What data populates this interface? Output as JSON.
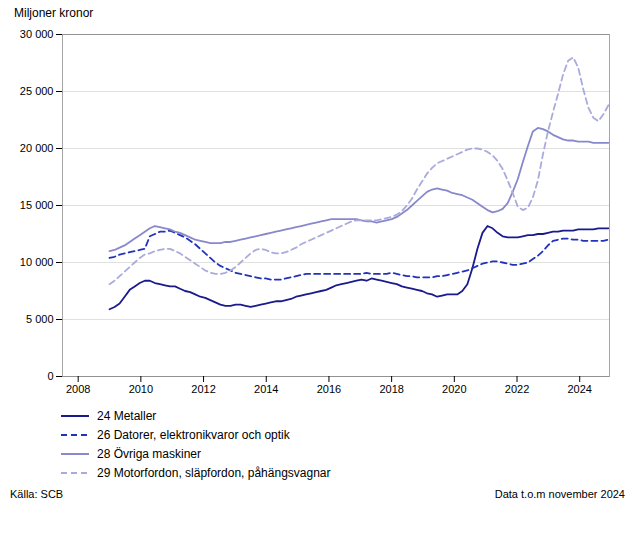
{
  "chart_data": {
    "type": "line",
    "ylabel": "Miljoner kronor",
    "annotations": [
      "Källa: SCB",
      "Data t.o.m november 2024"
    ],
    "x": [
      2009,
      2009.1608,
      2009.3216,
      2009.4823,
      2009.6431,
      2009.8039,
      2009.9647,
      2010.1254,
      2010.2862,
      2010.447,
      2010.6078,
      2010.7686,
      2010.9293,
      2011.0901,
      2011.2509,
      2011.4117,
      2011.5724,
      2011.7332,
      2011.894,
      2012.0548,
      2012.2156,
      2012.3763,
      2012.5371,
      2012.6979,
      2012.8587,
      2013.0194,
      2013.1802,
      2013.341,
      2013.5018,
      2013.6626,
      2013.8233,
      2013.9841,
      2014.1449,
      2014.3057,
      2014.4664,
      2014.6272,
      2014.788,
      2014.9488,
      2015.1096,
      2015.2703,
      2015.4311,
      2015.5919,
      2015.7527,
      2015.9134,
      2016.0742,
      2016.235,
      2016.3958,
      2016.5566,
      2016.7173,
      2016.8781,
      2017.0389,
      2017.1997,
      2017.3604,
      2017.5212,
      2017.682,
      2017.8428,
      2018.0036,
      2018.1643,
      2018.3251,
      2018.4859,
      2018.6467,
      2018.8074,
      2018.9682,
      2019.129,
      2019.2898,
      2019.4506,
      2019.6113,
      2019.7721,
      2019.9329,
      2020.0937,
      2020.2544,
      2020.4152,
      2020.576,
      2020.7368,
      2020.8976,
      2021.0583,
      2021.2191,
      2021.3799,
      2021.5407,
      2021.7014,
      2021.8622,
      2022.023,
      2022.1838,
      2022.3446,
      2022.5053,
      2022.6661,
      2022.8269,
      2022.9877,
      2023.1484,
      2023.3092,
      2023.47,
      2023.6308,
      2023.7916,
      2023.9523,
      2024.1131,
      2024.2739,
      2024.4347,
      2024.5954,
      2024.7562,
      2024.917
    ],
    "series": [
      {
        "name": "24 Metaller",
        "color": "#1a1a8c",
        "line_style": "solid",
        "values": [
          5900,
          6100,
          6400,
          7000,
          7600,
          7900,
          8200,
          8400,
          8400,
          8200,
          8100,
          8000,
          7900,
          7900,
          7700,
          7500,
          7400,
          7200,
          7000,
          6900,
          6700,
          6500,
          6300,
          6200,
          6200,
          6300,
          6300,
          6200,
          6100,
          6200,
          6300,
          6400,
          6500,
          6600,
          6600,
          6700,
          6800,
          7000,
          7100,
          7200,
          7300,
          7400,
          7500,
          7600,
          7800,
          8000,
          8100,
          8200,
          8300,
          8400,
          8500,
          8400,
          8600,
          8500,
          8400,
          8300,
          8200,
          8100,
          7900,
          7800,
          7700,
          7600,
          7500,
          7300,
          7200,
          7000,
          7100,
          7200,
          7200,
          7200,
          7500,
          8100,
          9500,
          11200,
          12600,
          13200,
          13000,
          12600,
          12300,
          12200,
          12200,
          12200,
          12300,
          12400,
          12400,
          12500,
          12500,
          12600,
          12700,
          12700,
          12800,
          12800,
          12800,
          12900,
          12900,
          12900,
          12900,
          13000,
          13000,
          13000
        ]
      },
      {
        "name": "26 Datorer, elektronikvaror och optik",
        "color": "#2233bb",
        "line_style": "dashed",
        "values": [
          10400,
          10500,
          10700,
          10800,
          10900,
          11000,
          11100,
          11200,
          12300,
          12500,
          12700,
          12700,
          12800,
          12600,
          12400,
          12200,
          11900,
          11600,
          11200,
          10800,
          10400,
          10000,
          9700,
          9500,
          9300,
          9100,
          9000,
          8900,
          8800,
          8700,
          8600,
          8600,
          8500,
          8500,
          8500,
          8600,
          8700,
          8800,
          8900,
          9000,
          9000,
          9000,
          9000,
          9000,
          9000,
          9000,
          9000,
          9000,
          9000,
          9000,
          9000,
          9100,
          9000,
          9000,
          9000,
          9000,
          9100,
          9000,
          8900,
          8800,
          8800,
          8700,
          8700,
          8700,
          8700,
          8800,
          8800,
          8900,
          9000,
          9100,
          9200,
          9300,
          9500,
          9700,
          9900,
          10000,
          10100,
          10100,
          10000,
          9900,
          9800,
          9800,
          9900,
          10000,
          10300,
          10600,
          11000,
          11500,
          11900,
          12000,
          12100,
          12100,
          12000,
          12000,
          11900,
          11900,
          11900,
          11900,
          11900,
          12000
        ]
      },
      {
        "name": "28 Övriga maskiner",
        "color": "#8888cc",
        "line_style": "solid",
        "values": [
          11000,
          11100,
          11300,
          11500,
          11800,
          12100,
          12400,
          12700,
          13000,
          13200,
          13100,
          13000,
          12900,
          12700,
          12600,
          12400,
          12200,
          12000,
          11900,
          11800,
          11700,
          11700,
          11700,
          11800,
          11800,
          11900,
          12000,
          12100,
          12200,
          12300,
          12400,
          12500,
          12600,
          12700,
          12800,
          12900,
          13000,
          13100,
          13200,
          13300,
          13400,
          13500,
          13600,
          13700,
          13800,
          13800,
          13800,
          13800,
          13800,
          13800,
          13700,
          13600,
          13600,
          13500,
          13600,
          13700,
          13800,
          14000,
          14300,
          14600,
          15000,
          15400,
          15800,
          16200,
          16400,
          16500,
          16400,
          16300,
          16100,
          16000,
          15900,
          15700,
          15500,
          15200,
          14900,
          14600,
          14400,
          14500,
          14700,
          15200,
          16200,
          17300,
          18800,
          20200,
          21500,
          21800,
          21700,
          21500,
          21200,
          21000,
          20800,
          20700,
          20700,
          20600,
          20600,
          20600,
          20500,
          20500,
          20500,
          20500
        ]
      },
      {
        "name": "29 Motorfordon, släpfordon, påhängsvagnar",
        "color": "#aaaadd",
        "line_style": "dashed",
        "values": [
          8100,
          8400,
          8800,
          9200,
          9600,
          10000,
          10400,
          10700,
          10800,
          11000,
          11100,
          11200,
          11200,
          11000,
          10800,
          10500,
          10200,
          9900,
          9600,
          9300,
          9100,
          9000,
          9000,
          9100,
          9300,
          9600,
          10000,
          10400,
          10800,
          11100,
          11200,
          11100,
          10900,
          10800,
          10800,
          10900,
          11100,
          11300,
          11600,
          11800,
          12000,
          12200,
          12400,
          12600,
          12800,
          13000,
          13200,
          13400,
          13600,
          13700,
          13700,
          13700,
          13700,
          13700,
          13800,
          13900,
          14000,
          14200,
          14500,
          15000,
          15600,
          16400,
          17100,
          17800,
          18300,
          18700,
          18900,
          19100,
          19300,
          19500,
          19700,
          19900,
          20000,
          20000,
          19900,
          19700,
          19400,
          18900,
          18200,
          17200,
          16100,
          14900,
          14600,
          14800,
          15700,
          17200,
          19500,
          21500,
          23200,
          24800,
          26500,
          27700,
          28000,
          27100,
          25200,
          23600,
          22700,
          22400,
          23000,
          23800
        ]
      }
    ],
    "xlim": [
      2007.5,
      2024.95
    ],
    "xticks": [
      2008,
      2010,
      2012,
      2014,
      2016,
      2018,
      2020,
      2022,
      2024
    ],
    "ylim": [
      0,
      30000
    ],
    "yticks": [
      0,
      {
        "value": 5000,
        "label": "5 000"
      },
      {
        "value": 10000,
        "label": "10 000"
      },
      {
        "value": 15000,
        "label": "15 000"
      },
      {
        "value": 20000,
        "label": "20 000"
      },
      {
        "value": 25000,
        "label": "25 000"
      },
      {
        "value": 30000,
        "label": "30 000"
      }
    ],
    "grid": true,
    "legend": "bottom"
  }
}
